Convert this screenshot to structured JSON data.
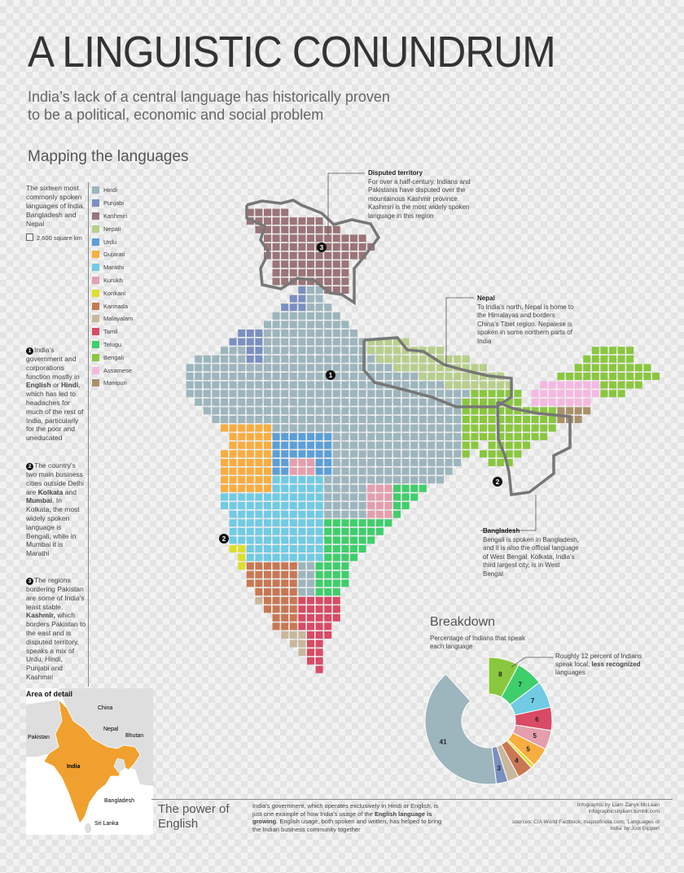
{
  "header": {
    "title": "A LINGUISTIC CONUNDRUM",
    "subtitle": "India’s lack of a central language has historically proven to be a political, economic and social problem",
    "section": "Mapping the languages"
  },
  "intro": {
    "text": "The sixteen most commonly spoken languages of India, Bangladesh and Nepal",
    "scale": "2,600 square km"
  },
  "legend": [
    {
      "label": "Hindi",
      "color": "#9db5bd"
    },
    {
      "label": "Punjabi",
      "color": "#7b8fc0"
    },
    {
      "label": "Kashmiri",
      "color": "#9a7478"
    },
    {
      "label": "Nepali",
      "color": "#b8cf8c"
    },
    {
      "label": "Urdu",
      "color": "#5b9fd8"
    },
    {
      "label": "Gujarati",
      "color": "#f8ad3f"
    },
    {
      "label": "Marathi",
      "color": "#70cbe3"
    },
    {
      "label": "Kurukh",
      "color": "#e59eac"
    },
    {
      "label": "Konkani",
      "color": "#dede2e"
    },
    {
      "label": "Kannada",
      "color": "#c97752"
    },
    {
      "label": "Malayalam",
      "color": "#c9b79d"
    },
    {
      "label": "Tamil",
      "color": "#d94a65"
    },
    {
      "label": "Telugu",
      "color": "#3fce6c"
    },
    {
      "label": "Bengali",
      "color": "#8ac73f"
    },
    {
      "label": "Assamese",
      "color": "#f5b8e0"
    },
    {
      "label": "Manipuri",
      "color": "#a89068"
    }
  ],
  "notes": [
    {
      "num": "1",
      "pre": "India’s government and corporations function mostly in ",
      "b1": "English",
      "mid": " or ",
      "b2": "Hindi",
      "post": ", which has led to headaches for much of the rest of India, particularly for the poor and uneducated"
    },
    {
      "num": "2",
      "pre": "The country’s two main business cities outside Delhi are ",
      "b1": "Kolkata",
      "mid": " and ",
      "b2": "Mumbai",
      "post": ". In Kolkata, the most widely spoken language is Bengali, while in Mumbai it is Marathi"
    },
    {
      "num": "3",
      "pre": "The regions bordering Pakistan are some of India’s least stable. ",
      "b1": "Kashmir,",
      "mid": " which borders Pakistan to the east and is disputed territory, speaks a mix of Urdu, Hindi, Punjabi and Kashmiri",
      "b2": "",
      "post": ""
    }
  ],
  "annotations": {
    "disputed": {
      "title": "Disputed territory",
      "text": "For over a half-century, Indians and Pakistanis have disputed over the mountainous Kashmir province. Kashmiri is the most widely spoken language in this region"
    },
    "nepal": {
      "title": "Nepal",
      "text": "To India’s north, Nepal is home to the Himalayas and borders China’s Tibet region. Nepalese is spoken in some northern parts of India"
    },
    "bangladesh": {
      "title": "Bangladesh",
      "text": "Bengali is spoken in Bangladesh, and it is also the official language of West Bengal. Kolkata, India’s third largest city, is in West Bengal"
    }
  },
  "map_markers": [
    "1",
    "2",
    "2",
    "3"
  ],
  "breakdown": {
    "title": "Breakdown",
    "subtitle": "Percentage of Indians that speak each language",
    "note_pre": "Roughly 12 percent of Indians speak local, ",
    "note_bold": "less recognized",
    "note_post": " languages"
  },
  "area_of_detail": {
    "title": "Area of detail",
    "labels": [
      "China",
      "Nepal",
      "Bhutan",
      "Pakistan",
      "India",
      "Bangladesh",
      "Sri Lanka"
    ],
    "colors": {
      "india": "#f0a02e",
      "other": "#dedede",
      "sea": "#ffffff"
    }
  },
  "footer": {
    "heading": "The power of English",
    "text_pre": "India’s government, which operates exclusively in Hindi or English, is just one example of how India’s usage of the ",
    "text_bold": "English language is growing",
    "text_post": ". English usage, both spoken and written, has helped to bring the Indian business community together",
    "credit": "Infographic by Liam Zanyk McLean infographicsbyliam.tumblr.com",
    "sources": "sources: CIA World Factbook, mapsofindia.com, 'Languages of India' by Jost Gippert"
  },
  "chart_data": [
    {
      "type": "pie",
      "title": "Breakdown",
      "series": [
        {
          "name": "Hindi",
          "value": 41,
          "color": "#9db5bd",
          "label": "41"
        },
        {
          "name": "Punjabi",
          "value": 3,
          "color": "#7b8fc0",
          "label": "3"
        },
        {
          "name": "Malayalam",
          "value": 3,
          "color": "#c9b79d",
          "label": ""
        },
        {
          "name": "Kannada",
          "value": 4,
          "color": "#c97752",
          "label": "4"
        },
        {
          "name": "Konkani",
          "value": 1,
          "color": "#dede2e",
          "label": ""
        },
        {
          "name": "Gujarati",
          "value": 5,
          "color": "#f8ad3f",
          "label": "5"
        },
        {
          "name": "Kurukh",
          "value": 5,
          "color": "#e59eac",
          "label": "5"
        },
        {
          "name": "Tamil",
          "value": 6,
          "color": "#d94a65",
          "label": "6"
        },
        {
          "name": "Marathi",
          "value": 7,
          "color": "#70cbe3",
          "label": "7"
        },
        {
          "name": "Telugu",
          "value": 7,
          "color": "#3fce6c",
          "label": "7"
        },
        {
          "name": "Bengali",
          "value": 8,
          "color": "#8ac73f",
          "label": "8"
        },
        {
          "name": "Other",
          "value": 12,
          "color": "#ffffff",
          "label": ""
        }
      ]
    },
    {
      "type": "heatmap",
      "title": "Mapping the languages",
      "regions": [
        {
          "lang": "Hindi",
          "color": "#9db5bd"
        },
        {
          "lang": "Punjabi",
          "color": "#7b8fc0"
        },
        {
          "lang": "Kashmiri",
          "color": "#9a7478"
        },
        {
          "lang": "Nepali",
          "color": "#b8cf8c"
        },
        {
          "lang": "Urdu",
          "color": "#5b9fd8"
        },
        {
          "lang": "Gujarati",
          "color": "#f8ad3f"
        },
        {
          "lang": "Marathi",
          "color": "#70cbe3"
        },
        {
          "lang": "Kurukh",
          "color": "#e59eac"
        },
        {
          "lang": "Konkani",
          "color": "#dede2e"
        },
        {
          "lang": "Kannada",
          "color": "#c97752"
        },
        {
          "lang": "Malayalam",
          "color": "#c9b79d"
        },
        {
          "lang": "Tamil",
          "color": "#d94a65"
        },
        {
          "lang": "Telugu",
          "color": "#3fce6c"
        },
        {
          "lang": "Bengali",
          "color": "#8ac73f"
        },
        {
          "lang": "Assamese",
          "color": "#f5b8e0"
        },
        {
          "lang": "Manipuri",
          "color": "#a89068"
        }
      ]
    }
  ]
}
